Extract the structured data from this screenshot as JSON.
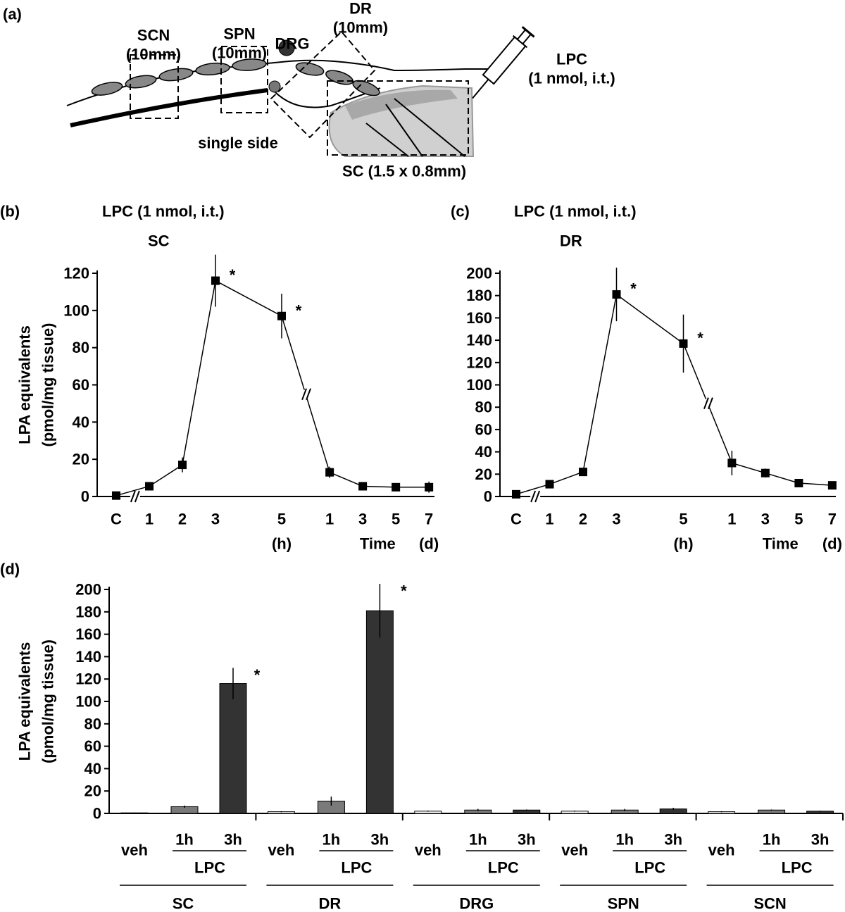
{
  "panel_labels": {
    "a": "(a)",
    "b": "(b)",
    "c": "(c)",
    "d": "(d)"
  },
  "diagram": {
    "scn": [
      "SCN",
      "(10mm)"
    ],
    "spn": [
      "SPN",
      "(10mm)"
    ],
    "drg": "DRG",
    "dr": [
      "DR",
      "(10mm)"
    ],
    "lpc": [
      "LPC",
      "(1 nmol, i.t.)"
    ],
    "single_side": "single side",
    "sc": "SC (1.5 x 0.8mm)"
  },
  "chart_data": [
    {
      "type": "line",
      "title": "LPC (1 nmol, i.t.)",
      "subtitle": "SC",
      "ylabel": [
        "LPA equivalents",
        "(pmol/mg tissue)"
      ],
      "xlabel": "Time",
      "x_units": [
        "(h)",
        "(d)"
      ],
      "categories": [
        "C",
        "1",
        "2",
        "3",
        "5",
        "1",
        "3",
        "5",
        "7"
      ],
      "values": [
        0.5,
        5.5,
        17,
        116,
        97,
        13,
        5.5,
        5,
        5
      ],
      "errors": [
        0.5,
        1,
        4,
        14,
        12,
        3,
        1,
        2,
        3
      ],
      "markers": [
        null,
        null,
        null,
        "*",
        "*",
        null,
        null,
        null,
        null
      ],
      "color": "#000000",
      "ylim": [
        0,
        120
      ],
      "yticks": [
        0,
        20,
        40,
        60,
        80,
        100,
        120
      ]
    },
    {
      "type": "line",
      "title": "LPC (1 nmol, i.t.)",
      "subtitle": "DR",
      "xlabel": "Time",
      "x_units": [
        "(h)",
        "(d)"
      ],
      "categories": [
        "C",
        "1",
        "2",
        "3",
        "5",
        "1",
        "3",
        "5",
        "7"
      ],
      "values": [
        2,
        11,
        22,
        181,
        137,
        30,
        21,
        12,
        10
      ],
      "errors": [
        1,
        2,
        2,
        24,
        26,
        11,
        4,
        3,
        2
      ],
      "markers": [
        null,
        null,
        null,
        "*",
        "*",
        null,
        null,
        null,
        null
      ],
      "color": "#000000",
      "ylim": [
        0,
        200
      ],
      "yticks": [
        0,
        20,
        40,
        60,
        80,
        100,
        120,
        140,
        160,
        180,
        200
      ]
    },
    {
      "type": "bar",
      "ylabel": [
        "LPA equivalents",
        "(pmol/mg tissue)"
      ],
      "categories": [
        "SC",
        "DR",
        "DRG",
        "SPN",
        "SCN"
      ],
      "group_label": "LPC",
      "series": [
        {
          "name": "veh",
          "color": "#ffffff",
          "values": [
            0.5,
            1.5,
            2,
            2,
            1.5
          ],
          "errors": [
            0.3,
            0.5,
            0.5,
            0.5,
            0.5
          ]
        },
        {
          "name": "1h",
          "color": "#7a7a7a",
          "values": [
            6,
            11,
            3,
            3,
            3
          ],
          "errors": [
            1,
            4,
            1,
            1,
            0.5
          ]
        },
        {
          "name": "3h",
          "color": "#333333",
          "values": [
            116,
            181,
            3,
            4,
            2
          ],
          "errors": [
            14,
            24,
            0.5,
            1,
            0.5
          ],
          "markers": [
            "*",
            "*",
            null,
            null,
            null
          ]
        }
      ],
      "ylim": [
        0,
        200
      ],
      "yticks": [
        0,
        20,
        40,
        60,
        80,
        100,
        120,
        140,
        160,
        180,
        200
      ]
    }
  ]
}
